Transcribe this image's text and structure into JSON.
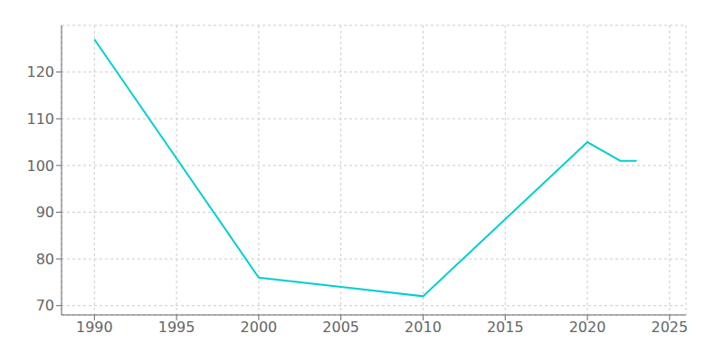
{
  "chart_data": {
    "type": "line",
    "x": [
      1990,
      2000,
      2005,
      2010,
      2020,
      2021,
      2022,
      2023
    ],
    "values": [
      127,
      76,
      74,
      72,
      105,
      103,
      101,
      101
    ],
    "color": "#00CED1",
    "xlim": [
      1988,
      2026
    ],
    "ylim": [
      68,
      130
    ],
    "xticks": [
      1990,
      1995,
      2000,
      2005,
      2010,
      2015,
      2020,
      2025
    ],
    "yticks": [
      70,
      80,
      90,
      100,
      110,
      120
    ],
    "grid": true
  }
}
